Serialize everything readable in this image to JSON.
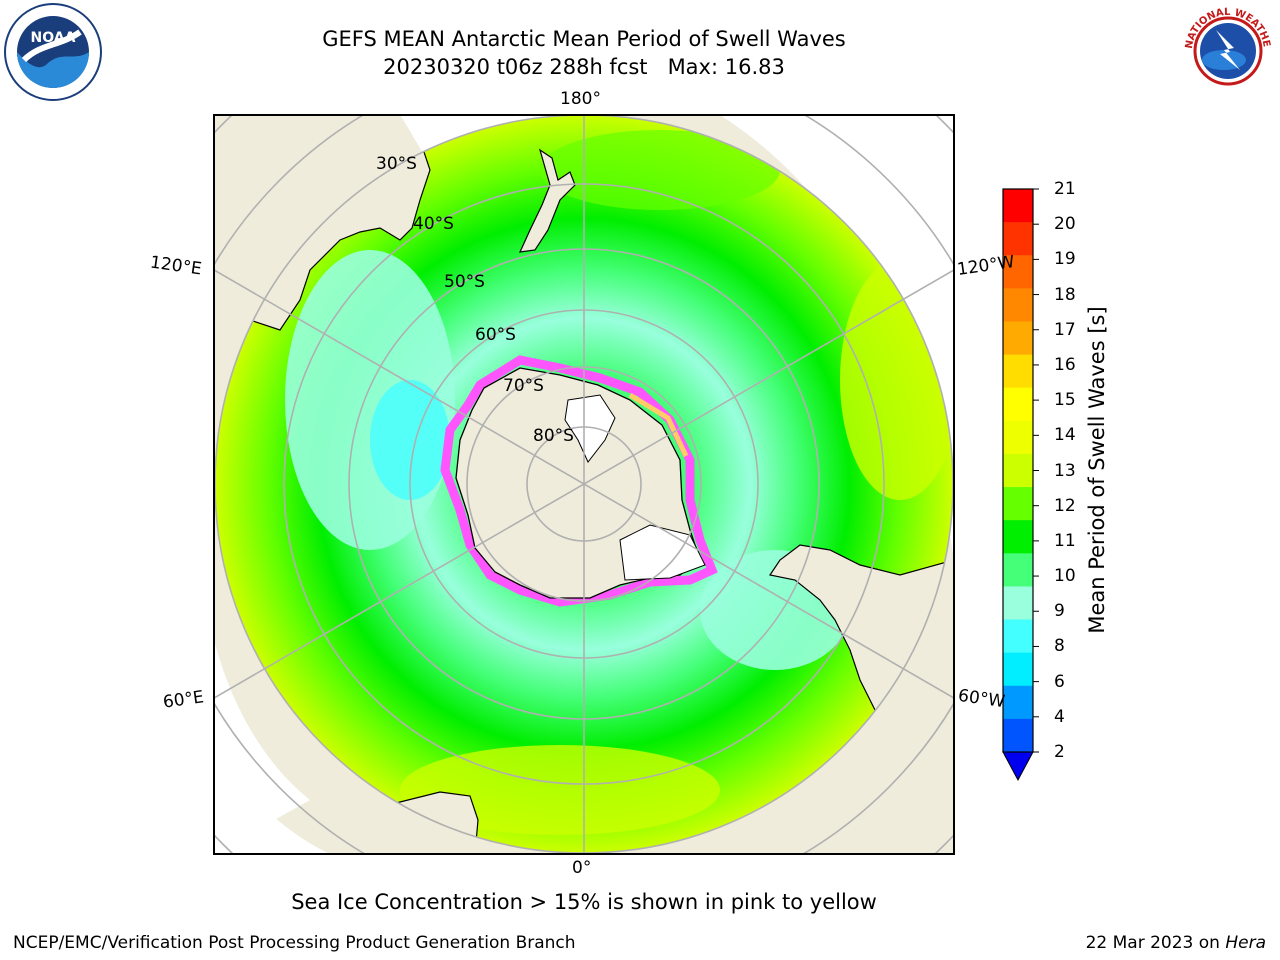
{
  "header": {
    "title": "GEFS MEAN Antarctic Mean Period of Swell Waves",
    "subtitle": "20230320 t06z 288h fcst   Max: 16.83"
  },
  "logos": {
    "left": {
      "name": "noaa-logo",
      "text": "NOAA"
    },
    "right": {
      "name": "national-weather-service-logo",
      "text": "NATIONAL WEATHER SERVICE"
    }
  },
  "map": {
    "projection": "south-polar-stereographic",
    "longitude_labels": {
      "top": "180°",
      "bottom": "0°",
      "upper_left": "120°E",
      "upper_right": "120°W",
      "lower_left": "60°E",
      "lower_right": "60°W"
    },
    "latitude_labels": [
      "30°S",
      "40°S",
      "50°S",
      "60°S",
      "70°S",
      "80°S"
    ],
    "colors": {
      "land": "#efecdc",
      "ocean_outside": "#ffffff",
      "grid": "#b0b0b0",
      "coast": "#000000"
    }
  },
  "colorbar": {
    "label": "Mean Period of Swell Waves [s]",
    "ticks": [
      "21",
      "20",
      "19",
      "18",
      "17",
      "16",
      "15",
      "14",
      "13",
      "12",
      "11",
      "10",
      "9",
      "8",
      "6",
      "4",
      "2"
    ],
    "colors": [
      "#ff0000",
      "#ff3300",
      "#ff6600",
      "#ff8800",
      "#ffaa00",
      "#ffdd00",
      "#ffff00",
      "#eeff00",
      "#ccff00",
      "#66ff00",
      "#00ee00",
      "#44ff77",
      "#99ffdd",
      "#44ffff",
      "#00eeff",
      "#0099ff",
      "#0055ff"
    ],
    "under_color": "#0000ee"
  },
  "note": "Sea Ice Concentration > 15% is shown in pink to yellow",
  "footer": {
    "left": "NCEP/EMC/Verification Post Processing Product Generation Branch",
    "date": "22 Mar 2023 on ",
    "machine": "Hera"
  }
}
